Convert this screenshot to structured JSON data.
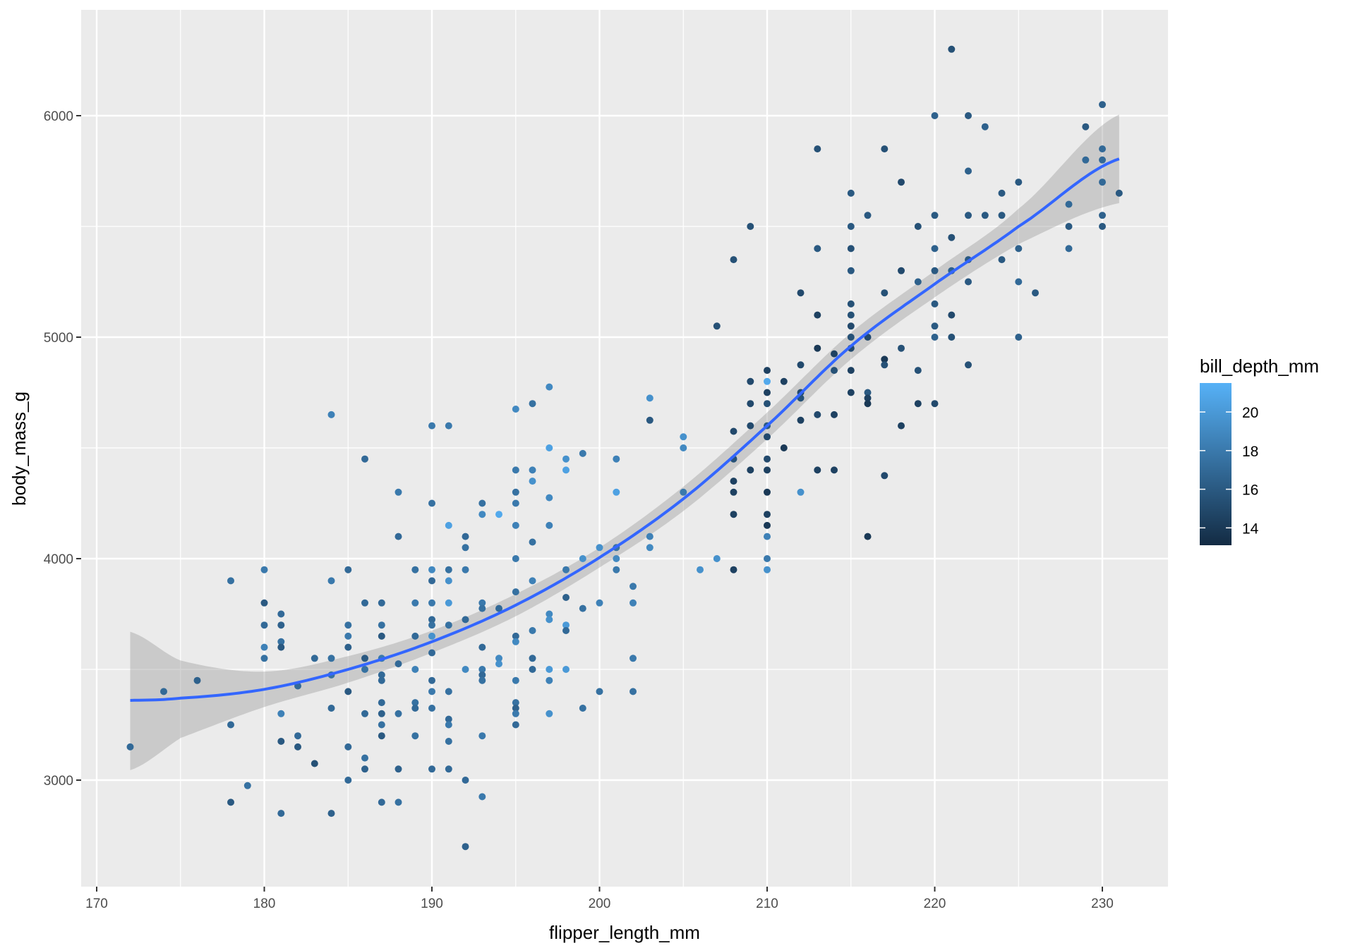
{
  "chart_data": {
    "type": "scatter",
    "title": "",
    "xlabel": "flipper_length_mm",
    "ylabel": "body_mass_g",
    "xlim": [
      169,
      233.5
    ],
    "ylim": [
      2530,
      6450
    ],
    "x_ticks": [
      170,
      180,
      190,
      200,
      210,
      220,
      230
    ],
    "y_ticks": [
      3000,
      4000,
      5000,
      6000
    ],
    "grid": true,
    "legend": {
      "title": "bill_depth_mm",
      "type": "colorbar",
      "position": "right",
      "ticks": [
        14,
        16,
        18,
        20
      ],
      "range": [
        13.1,
        21.5
      ],
      "low_color": "#132B43",
      "high_color": "#56B1F7"
    },
    "smooth": {
      "method": "loess",
      "color": "#3366FF",
      "ci_fill": "#999999",
      "x": [
        172,
        175,
        180,
        185,
        190,
        195,
        200,
        205,
        210,
        215,
        220,
        225,
        231
      ],
      "y": [
        3360,
        3370,
        3410,
        3500,
        3625,
        3790,
        4005,
        4270,
        4600,
        4960,
        5240,
        5500,
        5805
      ],
      "ci_lo": [
        3045,
        3190,
        3330,
        3440,
        3575,
        3740,
        3960,
        4215,
        4540,
        4900,
        5180,
        5420,
        5605
      ],
      "ci_hi": [
        3670,
        3540,
        3490,
        3560,
        3675,
        3840,
        4050,
        4325,
        4660,
        5020,
        5300,
        5580,
        6005
      ]
    },
    "points": [
      [
        172,
        3150,
        17.0
      ],
      [
        174,
        3400,
        17.0
      ],
      [
        176,
        3450,
        16.5
      ],
      [
        178,
        3900,
        17.5
      ],
      [
        178,
        3250,
        17.0
      ],
      [
        178,
        2900,
        16.0
      ],
      [
        179,
        2975,
        17.5
      ],
      [
        180,
        3950,
        18.0
      ],
      [
        180,
        3800,
        16.0
      ],
      [
        180,
        3700,
        17.0
      ],
      [
        180,
        3600,
        18.5
      ],
      [
        180,
        3550,
        17.5
      ],
      [
        181,
        3750,
        17.0
      ],
      [
        181,
        3700,
        16.5
      ],
      [
        181,
        3625,
        17.5
      ],
      [
        181,
        3600,
        16.0
      ],
      [
        181,
        3300,
        18.5
      ],
      [
        181,
        3175,
        16.0
      ],
      [
        181,
        2850,
        17.0
      ],
      [
        182,
        3425,
        17.0
      ],
      [
        182,
        3200,
        17.0
      ],
      [
        182,
        3150,
        16.0
      ],
      [
        183,
        3550,
        17.0
      ],
      [
        183,
        3075,
        15.5
      ],
      [
        184,
        4650,
        18.5
      ],
      [
        184,
        3900,
        18.0
      ],
      [
        184,
        3550,
        17.5
      ],
      [
        184,
        3475,
        17.5
      ],
      [
        184,
        3325,
        17.0
      ],
      [
        184,
        2850,
        16.5
      ],
      [
        185,
        3950,
        17.0
      ],
      [
        185,
        3700,
        17.5
      ],
      [
        185,
        3650,
        18.0
      ],
      [
        185,
        3600,
        16.5
      ],
      [
        185,
        3400,
        16.0
      ],
      [
        185,
        3150,
        17.0
      ],
      [
        185,
        3000,
        17.0
      ],
      [
        186,
        4450,
        17.0
      ],
      [
        186,
        3800,
        17.0
      ],
      [
        186,
        3550,
        16.0
      ],
      [
        186,
        3500,
        17.5
      ],
      [
        186,
        3300,
        17.0
      ],
      [
        186,
        3100,
        17.5
      ],
      [
        186,
        3050,
        16.5
      ],
      [
        187,
        3800,
        17.0
      ],
      [
        187,
        3700,
        17.5
      ],
      [
        187,
        3650,
        16.0
      ],
      [
        187,
        3550,
        18.0
      ],
      [
        187,
        3475,
        17.0
      ],
      [
        187,
        3450,
        17.0
      ],
      [
        187,
        3350,
        17.0
      ],
      [
        187,
        3300,
        16.5
      ],
      [
        187,
        3250,
        17.5
      ],
      [
        187,
        3200,
        16.0
      ],
      [
        187,
        2900,
        17.0
      ],
      [
        188,
        4300,
        18.0
      ],
      [
        188,
        4100,
        17.0
      ],
      [
        188,
        3525,
        17.0
      ],
      [
        188,
        3300,
        17.5
      ],
      [
        188,
        3050,
        16.5
      ],
      [
        188,
        2900,
        17.5
      ],
      [
        189,
        3950,
        17.5
      ],
      [
        189,
        3800,
        18.0
      ],
      [
        189,
        3650,
        17.0
      ],
      [
        189,
        3500,
        18.5
      ],
      [
        189,
        3350,
        17.5
      ],
      [
        189,
        3325,
        17.0
      ],
      [
        189,
        3200,
        17.5
      ],
      [
        190,
        4600,
        18.0
      ],
      [
        190,
        4250,
        17.5
      ],
      [
        190,
        3950,
        19.0
      ],
      [
        190,
        3900,
        17.0
      ],
      [
        190,
        3800,
        18.0
      ],
      [
        190,
        3725,
        17.0
      ],
      [
        190,
        3700,
        17.5
      ],
      [
        190,
        3650,
        19.5
      ],
      [
        190,
        3575,
        17.0
      ],
      [
        190,
        3450,
        17.0
      ],
      [
        190,
        3400,
        18.0
      ],
      [
        190,
        3325,
        17.5
      ],
      [
        190,
        3050,
        17.0
      ],
      [
        191,
        4600,
        18.0
      ],
      [
        191,
        4150,
        20.5
      ],
      [
        191,
        3950,
        17.5
      ],
      [
        191,
        3900,
        19.5
      ],
      [
        191,
        3800,
        20.0
      ],
      [
        191,
        3700,
        17.5
      ],
      [
        191,
        3400,
        17.5
      ],
      [
        191,
        3275,
        17.0
      ],
      [
        191,
        3250,
        18.0
      ],
      [
        191,
        3175,
        17.5
      ],
      [
        191,
        3050,
        17.0
      ],
      [
        192,
        4100,
        17.0
      ],
      [
        192,
        4050,
        17.5
      ],
      [
        192,
        3950,
        18.0
      ],
      [
        192,
        3725,
        17.0
      ],
      [
        192,
        3500,
        19.0
      ],
      [
        192,
        3000,
        17.0
      ],
      [
        192,
        2700,
        16.5
      ],
      [
        193,
        4250,
        17.5
      ],
      [
        193,
        4200,
        19.0
      ],
      [
        193,
        3800,
        18.0
      ],
      [
        193,
        3775,
        17.5
      ],
      [
        193,
        3600,
        17.0
      ],
      [
        193,
        3500,
        18.0
      ],
      [
        193,
        3475,
        17.0
      ],
      [
        193,
        3450,
        17.5
      ],
      [
        193,
        3200,
        18.0
      ],
      [
        193,
        2925,
        18.0
      ],
      [
        194,
        4200,
        21.0
      ],
      [
        194,
        3775,
        17.0
      ],
      [
        194,
        3550,
        19.0
      ],
      [
        194,
        3525,
        19.5
      ],
      [
        195,
        4675,
        19.0
      ],
      [
        195,
        4400,
        18.0
      ],
      [
        195,
        4300,
        17.5
      ],
      [
        195,
        4250,
        18.0
      ],
      [
        195,
        4150,
        18.5
      ],
      [
        195,
        4000,
        18.0
      ],
      [
        195,
        3850,
        17.5
      ],
      [
        195,
        3650,
        17.0
      ],
      [
        195,
        3625,
        19.0
      ],
      [
        195,
        3450,
        18.0
      ],
      [
        195,
        3350,
        17.5
      ],
      [
        195,
        3325,
        16.5
      ],
      [
        195,
        3300,
        18.0
      ],
      [
        195,
        3250,
        17.0
      ],
      [
        196,
        4700,
        17.5
      ],
      [
        196,
        4400,
        18.5
      ],
      [
        196,
        4350,
        19.5
      ],
      [
        196,
        4075,
        17.5
      ],
      [
        196,
        3900,
        18.5
      ],
      [
        196,
        3675,
        18.0
      ],
      [
        196,
        3550,
        17.0
      ],
      [
        196,
        3500,
        17.0
      ],
      [
        197,
        4775,
        19.0
      ],
      [
        197,
        4500,
        20.5
      ],
      [
        197,
        4275,
        19.0
      ],
      [
        197,
        4150,
        18.5
      ],
      [
        197,
        3750,
        19.0
      ],
      [
        197,
        3725,
        19.5
      ],
      [
        197,
        3500,
        20.0
      ],
      [
        197,
        3450,
        18.5
      ],
      [
        197,
        3300,
        19.5
      ],
      [
        198,
        4450,
        19.5
      ],
      [
        198,
        4400,
        20.5
      ],
      [
        198,
        3950,
        18.0
      ],
      [
        198,
        3825,
        16.5
      ],
      [
        198,
        3700,
        20.0
      ],
      [
        198,
        3675,
        17.0
      ],
      [
        198,
        3500,
        20.0
      ],
      [
        199,
        4475,
        18.0
      ],
      [
        199,
        4000,
        19.5
      ],
      [
        199,
        3775,
        17.5
      ],
      [
        199,
        3325,
        17.5
      ],
      [
        200,
        4050,
        19.5
      ],
      [
        200,
        3800,
        18.5
      ],
      [
        200,
        3400,
        17.5
      ],
      [
        201,
        4450,
        18.5
      ],
      [
        201,
        4300,
        20.5
      ],
      [
        201,
        4050,
        17.5
      ],
      [
        201,
        4000,
        19.0
      ],
      [
        201,
        3950,
        18.0
      ],
      [
        202,
        3875,
        18.0
      ],
      [
        202,
        3800,
        18.5
      ],
      [
        202,
        3550,
        18.0
      ],
      [
        202,
        3400,
        17.5
      ],
      [
        203,
        4725,
        19.5
      ],
      [
        203,
        4625,
        16.0
      ],
      [
        203,
        4100,
        18.5
      ],
      [
        203,
        4050,
        19.0
      ],
      [
        205,
        4550,
        19.5
      ],
      [
        205,
        4500,
        19.0
      ],
      [
        205,
        4300,
        18.0
      ],
      [
        206,
        3950,
        19.5
      ],
      [
        207,
        5050,
        15.5
      ],
      [
        207,
        4000,
        19.5
      ],
      [
        208,
        5350,
        15.5
      ],
      [
        208,
        4575,
        15.0
      ],
      [
        208,
        4450,
        15.5
      ],
      [
        208,
        4350,
        14.5
      ],
      [
        208,
        4300,
        14.5
      ],
      [
        208,
        4200,
        14.5
      ],
      [
        208,
        3950,
        14.5
      ],
      [
        209,
        5500,
        15.5
      ],
      [
        209,
        4800,
        15.0
      ],
      [
        209,
        4700,
        15.0
      ],
      [
        209,
        4600,
        15.0
      ],
      [
        209,
        4400,
        14.5
      ],
      [
        210,
        4850,
        14.5
      ],
      [
        210,
        4800,
        21.0
      ],
      [
        210,
        4750,
        14.5
      ],
      [
        210,
        4700,
        15.5
      ],
      [
        210,
        4600,
        16.0
      ],
      [
        210,
        4550,
        15.0
      ],
      [
        210,
        4450,
        15.0
      ],
      [
        210,
        4400,
        14.5
      ],
      [
        210,
        4300,
        14.0
      ],
      [
        210,
        4200,
        14.5
      ],
      [
        210,
        4150,
        14.0
      ],
      [
        210,
        4100,
        18.5
      ],
      [
        210,
        4000,
        18.0
      ],
      [
        210,
        3950,
        19.5
      ],
      [
        211,
        4800,
        14.5
      ],
      [
        211,
        4500,
        14.0
      ],
      [
        212,
        5200,
        15.0
      ],
      [
        212,
        4875,
        15.0
      ],
      [
        212,
        4750,
        15.0
      ],
      [
        212,
        4725,
        15.5
      ],
      [
        212,
        4625,
        14.5
      ],
      [
        212,
        4300,
        19.5
      ],
      [
        213,
        5850,
        15.5
      ],
      [
        213,
        5400,
        16.0
      ],
      [
        213,
        5100,
        14.5
      ],
      [
        213,
        4950,
        14.0
      ],
      [
        213,
        4650,
        15.0
      ],
      [
        213,
        4400,
        14.5
      ],
      [
        214,
        4925,
        14.5
      ],
      [
        214,
        4850,
        15.5
      ],
      [
        214,
        4650,
        14.5
      ],
      [
        214,
        4400,
        14.5
      ],
      [
        215,
        5650,
        16.0
      ],
      [
        215,
        5500,
        16.0
      ],
      [
        215,
        5400,
        15.5
      ],
      [
        215,
        5300,
        16.0
      ],
      [
        215,
        5150,
        15.5
      ],
      [
        215,
        5100,
        15.5
      ],
      [
        215,
        5050,
        15.0
      ],
      [
        215,
        5000,
        15.5
      ],
      [
        215,
        4950,
        15.0
      ],
      [
        215,
        4850,
        14.5
      ],
      [
        215,
        4750,
        14.5
      ],
      [
        216,
        5550,
        16.0
      ],
      [
        216,
        5000,
        15.0
      ],
      [
        216,
        4750,
        16.0
      ],
      [
        216,
        4725,
        14.5
      ],
      [
        216,
        4700,
        14.0
      ],
      [
        216,
        4100,
        14.0
      ],
      [
        217,
        5850,
        15.5
      ],
      [
        217,
        5200,
        15.5
      ],
      [
        217,
        4900,
        14.0
      ],
      [
        217,
        4875,
        15.5
      ],
      [
        217,
        4375,
        15.0
      ],
      [
        218,
        5700,
        15.0
      ],
      [
        218,
        5300,
        15.0
      ],
      [
        218,
        4950,
        15.5
      ],
      [
        218,
        4600,
        14.5
      ],
      [
        219,
        5500,
        15.5
      ],
      [
        219,
        5250,
        16.5
      ],
      [
        219,
        4850,
        15.5
      ],
      [
        219,
        4700,
        14.5
      ],
      [
        220,
        6000,
        16.5
      ],
      [
        220,
        5550,
        16.0
      ],
      [
        220,
        5400,
        16.5
      ],
      [
        220,
        5300,
        16.0
      ],
      [
        220,
        5150,
        16.0
      ],
      [
        220,
        5050,
        16.0
      ],
      [
        220,
        5000,
        16.5
      ],
      [
        220,
        4700,
        15.0
      ],
      [
        221,
        6300,
        15.5
      ],
      [
        221,
        5450,
        15.5
      ],
      [
        221,
        5300,
        16.5
      ],
      [
        221,
        5100,
        15.0
      ],
      [
        221,
        5000,
        15.5
      ],
      [
        222,
        6000,
        16.0
      ],
      [
        222,
        5750,
        16.5
      ],
      [
        222,
        5550,
        16.0
      ],
      [
        222,
        5350,
        16.0
      ],
      [
        222,
        5250,
        16.0
      ],
      [
        222,
        4875,
        15.5
      ],
      [
        223,
        5950,
        16.5
      ],
      [
        223,
        5550,
        16.0
      ],
      [
        224,
        5650,
        16.0
      ],
      [
        224,
        5550,
        16.0
      ],
      [
        224,
        5350,
        16.0
      ],
      [
        225,
        5700,
        16.0
      ],
      [
        225,
        5400,
        16.5
      ],
      [
        225,
        5250,
        17.0
      ],
      [
        225,
        5000,
        16.5
      ],
      [
        226,
        5200,
        16.0
      ],
      [
        228,
        5600,
        17.0
      ],
      [
        228,
        5500,
        16.0
      ],
      [
        228,
        5400,
        17.0
      ],
      [
        229,
        5950,
        16.0
      ],
      [
        229,
        5800,
        17.0
      ],
      [
        230,
        6050,
        16.5
      ],
      [
        230,
        5850,
        17.0
      ],
      [
        230,
        5800,
        17.0
      ],
      [
        230,
        5700,
        17.0
      ],
      [
        230,
        5550,
        16.5
      ],
      [
        230,
        5500,
        16.0
      ],
      [
        231,
        5650,
        16.0
      ]
    ]
  }
}
